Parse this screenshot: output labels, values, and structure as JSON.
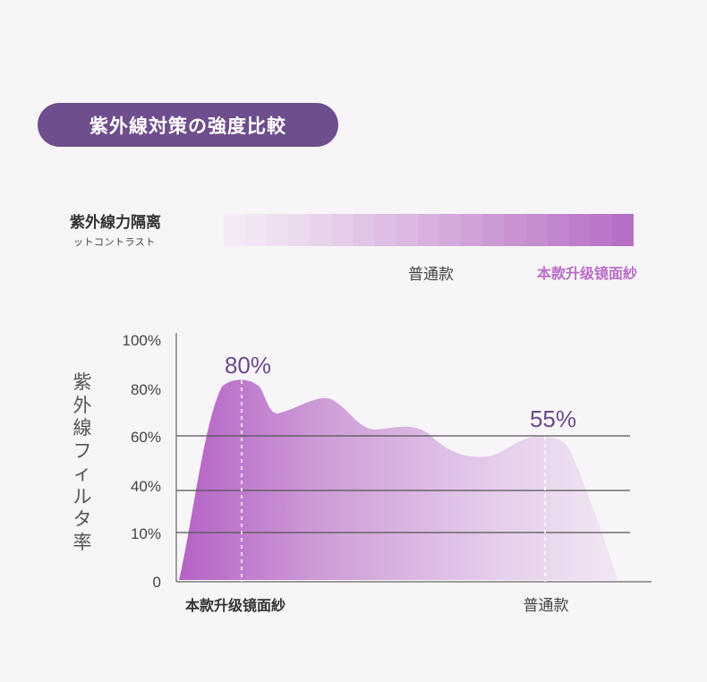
{
  "header": {
    "title": "紫外線対策の強度比較"
  },
  "legend": {
    "title": "紫外線力隔离",
    "subtitle": "ットコントラスト",
    "left_label": "普通款",
    "right_label": "本款升级镜面紗"
  },
  "colors": {
    "pill": "#6e4e8c",
    "accent": "#b86ec5",
    "peak_label": "#6a4a8a",
    "gridline": "#555555"
  },
  "chart_data": {
    "type": "area",
    "title": "",
    "ylabel": "紫外線フィルタ率",
    "xlabel": "",
    "ylim": [
      0,
      100
    ],
    "yticks": [
      "100%",
      "80%",
      "60%",
      "40%",
      "10%",
      "0"
    ],
    "gridlines": [
      "60%",
      "40%",
      "10%"
    ],
    "categories": [
      "本款升级镜面紗",
      "普通款"
    ],
    "annotations": [
      {
        "label": "80%",
        "category": "本款升级镜面紗",
        "value": 80
      },
      {
        "label": "55%",
        "category": "普通款",
        "value": 55
      }
    ]
  }
}
